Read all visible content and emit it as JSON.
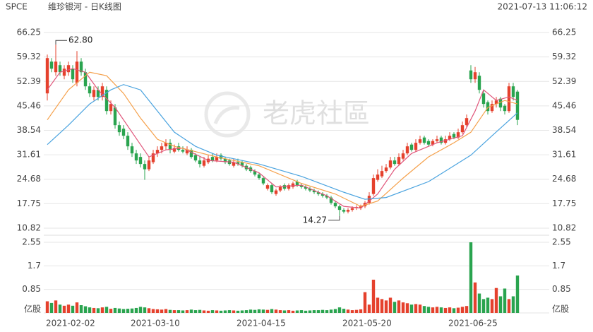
{
  "chart_data": {
    "type": "candlestick",
    "symbol": "SPCE",
    "title": "维珍银河 - 日K线图",
    "timestamp": "2021-07-13 11:06:12",
    "watermark": "老虎社區",
    "up_color": "#e5412d",
    "down_color": "#2aa44f",
    "ylim": [
      10.82,
      66.25
    ],
    "yticks": [
      66.25,
      59.32,
      52.39,
      45.46,
      38.54,
      31.61,
      24.68,
      17.75,
      10.82
    ],
    "y2lim": [
      0,
      2.55
    ],
    "y2ticks": [
      2.55,
      1.7,
      0.85,
      {
        "value": 0,
        "label": "亿股"
      }
    ],
    "grid": true,
    "xlim": [
      0,
      111
    ],
    "xticks": [
      {
        "value": 0,
        "label": "2021-02-02"
      },
      {
        "value": 20,
        "label": "2021-03-10"
      },
      {
        "value": 45,
        "label": "2021-04-15"
      },
      {
        "value": 70,
        "label": "2021-05-20"
      },
      {
        "value": 95,
        "label": "2021-06-25"
      }
    ],
    "open": [
      49,
      58,
      55,
      57,
      54,
      55,
      56,
      52,
      58,
      55,
      51,
      48,
      50,
      48,
      50,
      44,
      45,
      40,
      39,
      37,
      34,
      32,
      31,
      29,
      27.5,
      29.5,
      32,
      33,
      34,
      35,
      32.5,
      34,
      33,
      32,
      33,
      31.5,
      30,
      28.5,
      29.5,
      31,
      30,
      31.5,
      30.5,
      30,
      28.5,
      29.5,
      29.5,
      28.5,
      28,
      27,
      26,
      25,
      22,
      23,
      20.5,
      21.5,
      23,
      22,
      22.5,
      24,
      23,
      22.5,
      22,
      21.5,
      21,
      20.5,
      20,
      19.5,
      18,
      17,
      16,
      15.5,
      16,
      16.5,
      16.5,
      17,
      18,
      20.5,
      24.5,
      25.5,
      27,
      28,
      30,
      29,
      30.5,
      32,
      34.5,
      33,
      35,
      36.5,
      35.5,
      34.5,
      35.5,
      36.5,
      35,
      36,
      37.5,
      36.5,
      38,
      40,
      55.5,
      53,
      54,
      49,
      46.5,
      44,
      46,
      47.5,
      45.5,
      44,
      51,
      49.5
    ],
    "high": [
      60,
      59,
      62.8,
      58,
      57,
      58,
      57,
      61,
      59,
      56,
      52,
      51,
      51,
      52,
      51,
      47,
      46,
      41,
      40,
      38,
      35,
      33,
      32,
      30,
      31,
      33,
      34,
      35,
      36,
      36,
      34.5,
      35,
      34,
      34,
      33.5,
      32,
      31,
      31,
      31.5,
      32,
      32,
      32,
      31,
      30.5,
      30.5,
      30.5,
      30,
      29,
      28.5,
      27.5,
      26.5,
      25.5,
      23.5,
      23.5,
      22,
      23,
      23.5,
      23.5,
      24,
      24.5,
      23.5,
      23,
      22.5,
      22,
      21.5,
      21,
      20.5,
      20,
      18.5,
      17.5,
      16.5,
      16.5,
      17,
      17.3,
      17.5,
      18.5,
      21,
      26,
      27.5,
      28.5,
      29,
      31,
      31,
      32,
      33,
      35,
      35,
      36,
      37,
      37,
      36,
      36,
      37,
      37,
      37,
      38,
      38,
      39,
      41,
      43,
      57,
      56.5,
      55,
      50,
      47,
      47,
      48,
      48,
      46,
      52,
      52,
      50
    ],
    "low": [
      47,
      55,
      54,
      54,
      53,
      54,
      52,
      51,
      54,
      50,
      48,
      47,
      47,
      47,
      43,
      43,
      39,
      37,
      36,
      33,
      31,
      29,
      28,
      24.5,
      27,
      29,
      31,
      32,
      33,
      32,
      32,
      32.5,
      32,
      31.5,
      30.5,
      29.5,
      28,
      28,
      29,
      29.5,
      29.5,
      30,
      29,
      28.5,
      28,
      28.5,
      28,
      27,
      26.5,
      25.5,
      24.5,
      23,
      21.5,
      20.5,
      20,
      21,
      21.5,
      21.5,
      22,
      22.5,
      22,
      21.5,
      21,
      20.5,
      20,
      19.5,
      19,
      17.5,
      16.5,
      14.27,
      15,
      15,
      15.5,
      16,
      16,
      16.5,
      17.5,
      20,
      24,
      25,
      26.5,
      27.5,
      28.5,
      28.5,
      30,
      31.5,
      32.5,
      32.5,
      34.5,
      34.5,
      34,
      34,
      35,
      34.5,
      34.5,
      35.5,
      36,
      36,
      37.5,
      39.5,
      52,
      52,
      49,
      45,
      43,
      43.5,
      45,
      44,
      43,
      43.5,
      47,
      40
    ],
    "close": [
      59,
      56,
      58,
      55,
      56,
      57,
      53,
      58,
      55,
      51,
      49,
      50,
      48,
      51,
      44,
      46,
      40,
      38,
      37,
      34,
      32,
      30,
      29,
      27.5,
      30,
      32,
      33,
      34,
      35,
      33,
      33.5,
      33,
      32.5,
      33,
      31,
      30,
      29,
      30,
      30.5,
      30,
      31,
      30.5,
      29.5,
      29,
      29.5,
      29,
      28.5,
      27.5,
      27,
      26,
      25,
      23.5,
      23,
      21,
      21.5,
      22.5,
      22,
      23,
      23.5,
      23,
      22.5,
      22,
      21.5,
      21,
      20.5,
      20,
      19.5,
      18,
      17,
      16,
      15.5,
      16,
      16.5,
      16.8,
      17,
      18,
      20,
      25,
      26,
      27,
      28,
      30,
      29,
      31,
      32,
      34,
      33,
      35,
      36,
      35,
      34.5,
      35.5,
      36,
      35,
      36,
      37,
      36.5,
      38,
      40,
      42,
      53,
      55,
      50,
      46,
      44,
      46,
      47,
      45,
      44,
      51,
      48,
      41.5
    ],
    "volume": [
      0.42,
      0.36,
      0.45,
      0.3,
      0.26,
      0.3,
      0.26,
      0.38,
      0.28,
      0.24,
      0.2,
      0.18,
      0.17,
      0.2,
      0.22,
      0.15,
      0.18,
      0.16,
      0.14,
      0.15,
      0.16,
      0.18,
      0.22,
      0.2,
      0.17,
      0.14,
      0.13,
      0.12,
      0.14,
      0.11,
      0.1,
      0.1,
      0.09,
      0.1,
      0.12,
      0.1,
      0.11,
      0.09,
      0.08,
      0.1,
      0.09,
      0.08,
      0.09,
      0.1,
      0.09,
      0.08,
      0.09,
      0.1,
      0.12,
      0.11,
      0.13,
      0.12,
      0.11,
      0.14,
      0.12,
      0.1,
      0.09,
      0.1,
      0.08,
      0.09,
      0.1,
      0.08,
      0.09,
      0.1,
      0.1,
      0.11,
      0.1,
      0.12,
      0.14,
      0.2,
      0.15,
      0.12,
      0.1,
      0.11,
      0.13,
      0.75,
      0.3,
      1.2,
      0.55,
      0.5,
      0.45,
      0.55,
      0.4,
      0.45,
      0.38,
      0.35,
      0.3,
      0.32,
      0.3,
      0.25,
      0.22,
      0.2,
      0.22,
      0.2,
      0.18,
      0.2,
      0.17,
      0.19,
      0.22,
      0.25,
      2.55,
      1.1,
      0.7,
      0.5,
      0.55,
      0.5,
      0.9,
      0.6,
      0.88,
      0.5,
      0.6,
      1.35
    ],
    "ma_lines": [
      {
        "color": "#e0557a",
        "x": [
          0,
          3,
          6,
          9,
          12,
          16,
          20,
          24,
          28,
          32,
          38,
          44,
          50,
          54,
          60,
          66,
          70,
          74,
          78,
          82,
          86,
          92,
          98,
          101,
          103,
          106,
          109,
          111
        ],
        "values": [
          50,
          55,
          56,
          55,
          50,
          45,
          38,
          31,
          33,
          33.5,
          30,
          29.5,
          26.5,
          22.5,
          23,
          20,
          17,
          16.5,
          20.5,
          27.5,
          32,
          35,
          37,
          44,
          50,
          47,
          48,
          47
        ]
      },
      {
        "color": "#f5a04a",
        "x": [
          0,
          5,
          10,
          14,
          18,
          22,
          26,
          30,
          35,
          40,
          50,
          60,
          68,
          74,
          78,
          84,
          90,
          96,
          100,
          104,
          108,
          111
        ],
        "values": [
          41.5,
          50,
          55,
          54,
          49,
          42,
          36,
          34,
          32.5,
          31,
          28.5,
          23.5,
          20.5,
          17,
          18.5,
          25,
          31,
          35,
          38,
          45,
          47,
          46
        ]
      },
      {
        "color": "#4aa3df",
        "x": [
          0,
          5,
          10,
          15,
          18,
          22,
          26,
          30,
          35,
          40,
          50,
          60,
          70,
          75,
          80,
          90,
          100,
          105,
          111
        ],
        "values": [
          34.5,
          40,
          46,
          50,
          51.5,
          50,
          44,
          38,
          34,
          31.5,
          29,
          25.5,
          21,
          19,
          19.5,
          24,
          31.5,
          37,
          43.5
        ]
      }
    ],
    "annotations": [
      {
        "label": "62.80",
        "value": 62.8,
        "x": 2
      },
      {
        "label": "14.27",
        "value": 14.27,
        "x": 69
      }
    ]
  }
}
